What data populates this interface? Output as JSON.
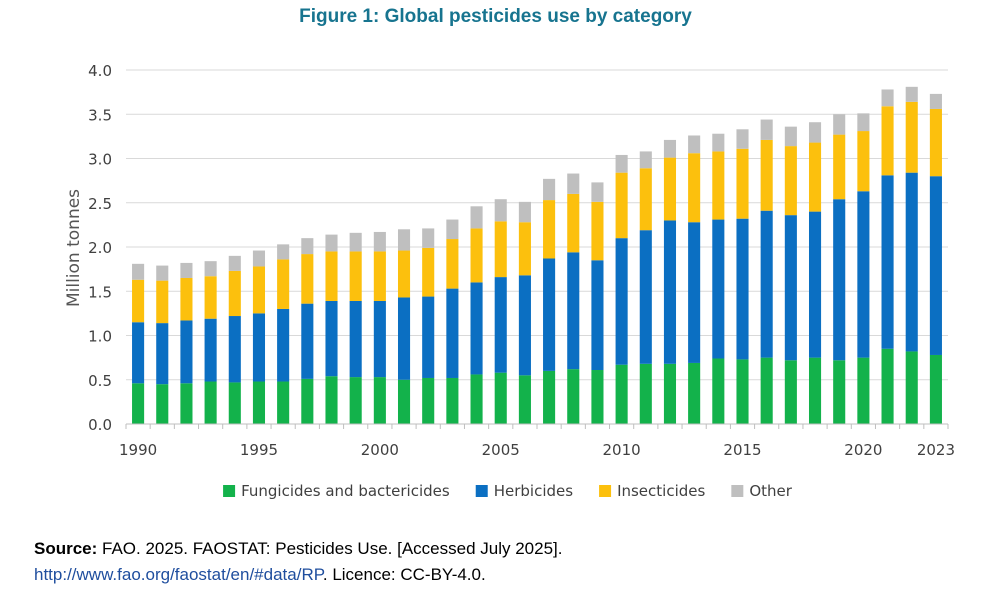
{
  "chart_data": {
    "type": "bar",
    "stacked": true,
    "title": "Figure 1: Global pesticides use by category",
    "ylabel": "Million tonnes",
    "xlabel": "",
    "ylim": [
      0,
      4.0
    ],
    "yticks": [
      "0.0",
      "0.5",
      "1.0",
      "1.5",
      "2.0",
      "2.5",
      "3.0",
      "3.5",
      "4.0"
    ],
    "xtick_labels": [
      "1990",
      "1995",
      "2000",
      "2005",
      "2010",
      "2015",
      "2020",
      "2023"
    ],
    "categories": [
      1990,
      1991,
      1992,
      1993,
      1994,
      1995,
      1996,
      1997,
      1998,
      1999,
      2000,
      2001,
      2002,
      2003,
      2004,
      2005,
      2006,
      2007,
      2008,
      2009,
      2010,
      2011,
      2012,
      2013,
      2014,
      2015,
      2016,
      2017,
      2018,
      2019,
      2020,
      2021,
      2022,
      2023
    ],
    "series": [
      {
        "name": "Fungicides and bactericides",
        "color": "#13b24b",
        "values": [
          0.46,
          0.45,
          0.46,
          0.48,
          0.47,
          0.48,
          0.48,
          0.51,
          0.54,
          0.53,
          0.53,
          0.5,
          0.52,
          0.52,
          0.56,
          0.58,
          0.55,
          0.6,
          0.62,
          0.61,
          0.67,
          0.68,
          0.68,
          0.69,
          0.74,
          0.73,
          0.75,
          0.72,
          0.75,
          0.72,
          0.75,
          0.85,
          0.82,
          0.78
        ]
      },
      {
        "name": "Herbicides",
        "color": "#0b6fc2",
        "values": [
          0.69,
          0.69,
          0.71,
          0.71,
          0.75,
          0.77,
          0.82,
          0.85,
          0.85,
          0.86,
          0.86,
          0.93,
          0.92,
          1.01,
          1.04,
          1.08,
          1.13,
          1.27,
          1.32,
          1.24,
          1.43,
          1.51,
          1.62,
          1.59,
          1.57,
          1.59,
          1.66,
          1.64,
          1.65,
          1.82,
          1.88,
          1.96,
          2.02,
          2.02
        ]
      },
      {
        "name": "Insecticides",
        "color": "#fcc00d",
        "values": [
          0.48,
          0.48,
          0.48,
          0.48,
          0.51,
          0.53,
          0.56,
          0.56,
          0.56,
          0.56,
          0.56,
          0.53,
          0.55,
          0.56,
          0.61,
          0.63,
          0.6,
          0.66,
          0.66,
          0.66,
          0.74,
          0.7,
          0.71,
          0.78,
          0.77,
          0.79,
          0.8,
          0.78,
          0.78,
          0.73,
          0.68,
          0.78,
          0.8,
          0.76
        ]
      },
      {
        "name": "Other",
        "color": "#bfbfbf",
        "values": [
          0.18,
          0.17,
          0.17,
          0.17,
          0.17,
          0.18,
          0.17,
          0.18,
          0.19,
          0.21,
          0.22,
          0.24,
          0.22,
          0.22,
          0.25,
          0.25,
          0.23,
          0.24,
          0.23,
          0.22,
          0.2,
          0.19,
          0.2,
          0.2,
          0.2,
          0.22,
          0.23,
          0.22,
          0.23,
          0.23,
          0.2,
          0.19,
          0.17,
          0.17
        ]
      }
    ],
    "legend_position": "bottom",
    "grid": "horizontal"
  },
  "source": {
    "label": "Source:",
    "text": " FAO. 2025. FAOSTAT: Pesticides Use. [Accessed July 2025].",
    "link": "http://www.fao.org/faostat/en/#data/RP",
    "licence": ". Licence: CC-BY-4.0."
  }
}
